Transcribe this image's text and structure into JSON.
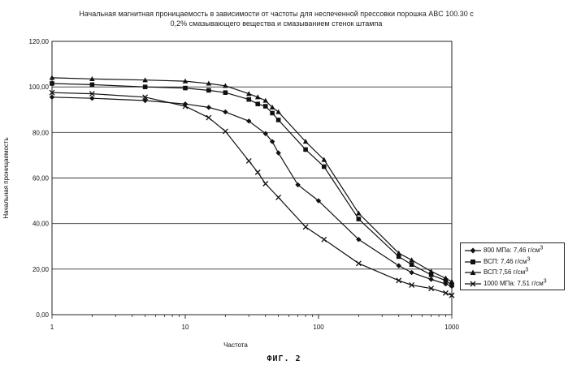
{
  "chart_data": {
    "type": "line",
    "title": "Начальная магнитная проницаемость в зависимости от частоты для неспеченной прессовки порошка ABC 100.30 с",
    "subtitle": "0,2% смазывающего вещества и смазыванием стенок штампа",
    "xlabel": "Частота",
    "ylabel": "Начальная проницаемость",
    "x_scale": "log",
    "xlim": [
      1,
      1000
    ],
    "x_ticks": [
      "1",
      "10",
      "100",
      "1000"
    ],
    "ylim": [
      0,
      120
    ],
    "y_ticks": [
      "0,00",
      "20,00",
      "40,00",
      "60,00",
      "80,00",
      "100,00",
      "120,00"
    ],
    "grid": "horizontal",
    "legend_position": "right",
    "series": [
      {
        "name": "800 МПа: 7,46 г/см",
        "unit_exponent": "3",
        "marker": "diamond",
        "x": [
          1,
          2,
          5,
          10,
          15,
          20,
          30,
          40,
          45,
          50,
          70,
          100,
          200,
          400,
          500,
          700,
          900,
          1000
        ],
        "y": [
          95.5,
          95,
          94,
          92.5,
          91,
          89,
          85,
          79.5,
          76,
          71,
          57,
          50,
          33,
          21.5,
          18.5,
          15.5,
          13.5,
          12.5
        ]
      },
      {
        "name": "ВСП: 7,46 г/см",
        "unit_exponent": "3",
        "marker": "square",
        "x": [
          1,
          2,
          5,
          10,
          15,
          20,
          30,
          35,
          40,
          45,
          50,
          80,
          110,
          200,
          400,
          500,
          700,
          900,
          1000
        ],
        "y": [
          101.5,
          101,
          100,
          99.5,
          98.5,
          97.5,
          94.5,
          92.5,
          91.5,
          88.5,
          85.5,
          72.5,
          65,
          42,
          25.5,
          22,
          17.5,
          15,
          13
        ]
      },
      {
        "name": "ВСП:7,56 г/см",
        "unit_exponent": "3",
        "marker": "triangle",
        "x": [
          1,
          2,
          5,
          10,
          15,
          20,
          30,
          35,
          40,
          45,
          50,
          80,
          110,
          200,
          400,
          500,
          700,
          900,
          1000
        ],
        "y": [
          104,
          103.5,
          103,
          102.5,
          101.5,
          100.5,
          97,
          95.5,
          94,
          91,
          89,
          76,
          68,
          44.5,
          27,
          24,
          19,
          16,
          14.5
        ]
      },
      {
        "name": "1000 МПа: 7,51 г/см",
        "unit_exponent": "3",
        "marker": "x",
        "x": [
          1,
          2,
          5,
          10,
          15,
          20,
          30,
          35,
          40,
          50,
          80,
          110,
          200,
          400,
          500,
          700,
          900,
          1000
        ],
        "y": [
          97.5,
          97,
          95.5,
          91.5,
          86.5,
          80.5,
          67.5,
          62.5,
          57.5,
          51.5,
          38.5,
          33,
          22.5,
          15,
          13,
          11.5,
          9.5,
          8.5
        ]
      }
    ]
  },
  "figure_caption": "ФИГ. 2"
}
